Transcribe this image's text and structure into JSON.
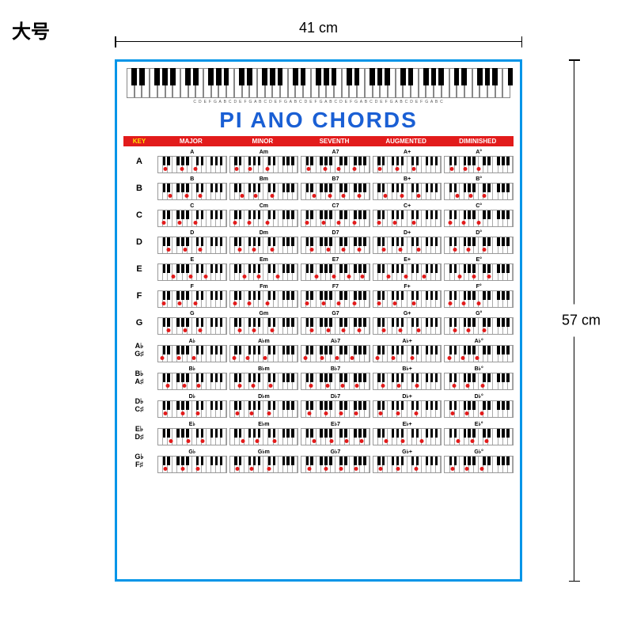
{
  "size_label": "大号",
  "dimensions": {
    "width": "41 cm",
    "height": "57 cm"
  },
  "title": "PI ANO CHORDS",
  "border_color": "#0095e8",
  "title_color": "#1a5fd4",
  "header_bg": "#e21b1b",
  "dot_color": "#e21b1b",
  "note_letters": "C D E F G A B C D E F G A B C D E F G A B C D E F G A B C D E F G A B C D E F G A B C D E F G A B C",
  "top_keyboard": {
    "white_keys": 50,
    "pattern": [
      1,
      1,
      0,
      1,
      1,
      1,
      0
    ]
  },
  "column_headers": [
    "KEY",
    "MAJOR",
    "MINOR",
    "SEVENTH",
    "AUGMENTED",
    "DIMINISHED"
  ],
  "rows": [
    {
      "label": "A",
      "dual": false,
      "chords": [
        {
          "name": "A",
          "dots": [
            10,
            35,
            55
          ]
        },
        {
          "name": "Am",
          "dots": [
            10,
            30,
            55
          ]
        },
        {
          "name": "A7",
          "dots": [
            10,
            35,
            55,
            78
          ]
        },
        {
          "name": "A+",
          "dots": [
            10,
            35,
            60
          ]
        },
        {
          "name": "A°",
          "dots": [
            10,
            30,
            50
          ]
        }
      ]
    },
    {
      "label": "B",
      "dual": false,
      "chords": [
        {
          "name": "B",
          "dots": [
            18,
            42,
            62
          ]
        },
        {
          "name": "Bm",
          "dots": [
            18,
            38,
            62
          ]
        },
        {
          "name": "B7",
          "dots": [
            18,
            42,
            62,
            85
          ]
        },
        {
          "name": "B+",
          "dots": [
            18,
            42,
            67
          ]
        },
        {
          "name": "B°",
          "dots": [
            18,
            38,
            58
          ]
        }
      ]
    },
    {
      "label": "C",
      "dual": false,
      "chords": [
        {
          "name": "C",
          "dots": [
            8,
            32,
            55
          ]
        },
        {
          "name": "Cm",
          "dots": [
            8,
            28,
            55
          ]
        },
        {
          "name": "C7",
          "dots": [
            8,
            32,
            55,
            78
          ]
        },
        {
          "name": "C+",
          "dots": [
            8,
            32,
            60
          ]
        },
        {
          "name": "C°",
          "dots": [
            8,
            28,
            50
          ]
        }
      ]
    },
    {
      "label": "D",
      "dual": false,
      "chords": [
        {
          "name": "D",
          "dots": [
            15,
            40,
            62
          ]
        },
        {
          "name": "Dm",
          "dots": [
            15,
            35,
            62
          ]
        },
        {
          "name": "D7",
          "dots": [
            15,
            40,
            62,
            85
          ]
        },
        {
          "name": "D+",
          "dots": [
            15,
            40,
            67
          ]
        },
        {
          "name": "D°",
          "dots": [
            15,
            35,
            58
          ]
        }
      ]
    },
    {
      "label": "E",
      "dual": false,
      "chords": [
        {
          "name": "E",
          "dots": [
            22,
            48,
            70
          ]
        },
        {
          "name": "Em",
          "dots": [
            22,
            43,
            70
          ]
        },
        {
          "name": "E7",
          "dots": [
            22,
            48,
            70,
            90
          ]
        },
        {
          "name": "E+",
          "dots": [
            22,
            48,
            75
          ]
        },
        {
          "name": "E°",
          "dots": [
            22,
            43,
            65
          ]
        }
      ]
    },
    {
      "label": "F",
      "dual": false,
      "chords": [
        {
          "name": "F",
          "dots": [
            8,
            32,
            55
          ]
        },
        {
          "name": "Fm",
          "dots": [
            8,
            28,
            55
          ]
        },
        {
          "name": "F7",
          "dots": [
            8,
            32,
            55,
            78
          ]
        },
        {
          "name": "F+",
          "dots": [
            8,
            32,
            60
          ]
        },
        {
          "name": "F°",
          "dots": [
            8,
            28,
            50
          ]
        }
      ]
    },
    {
      "label": "G",
      "dual": false,
      "chords": [
        {
          "name": "G",
          "dots": [
            15,
            40,
            62
          ]
        },
        {
          "name": "Gm",
          "dots": [
            15,
            35,
            62
          ]
        },
        {
          "name": "G7",
          "dots": [
            15,
            40,
            62,
            85
          ]
        },
        {
          "name": "G+",
          "dots": [
            15,
            40,
            67
          ]
        },
        {
          "name": "G°",
          "dots": [
            15,
            35,
            58
          ]
        }
      ]
    },
    {
      "label": "A♭\nG♯",
      "dual": true,
      "chords": [
        {
          "name": "A♭",
          "dots": [
            6,
            30,
            52
          ]
        },
        {
          "name": "A♭m",
          "dots": [
            6,
            26,
            52
          ]
        },
        {
          "name": "A♭7",
          "dots": [
            6,
            30,
            52,
            75
          ]
        },
        {
          "name": "A♭+",
          "dots": [
            6,
            30,
            57
          ]
        },
        {
          "name": "A♭°",
          "dots": [
            6,
            26,
            48
          ]
        }
      ]
    },
    {
      "label": "B♭\nA♯",
      "dual": true,
      "chords": [
        {
          "name": "B♭",
          "dots": [
            14,
            38,
            60
          ]
        },
        {
          "name": "B♭m",
          "dots": [
            14,
            34,
            60
          ]
        },
        {
          "name": "B♭7",
          "dots": [
            14,
            38,
            60,
            82
          ]
        },
        {
          "name": "B♭+",
          "dots": [
            14,
            38,
            65
          ]
        },
        {
          "name": "B♭°",
          "dots": [
            14,
            34,
            56
          ]
        }
      ]
    },
    {
      "label": "D♭\nC♯",
      "dual": true,
      "chords": [
        {
          "name": "D♭",
          "dots": [
            11,
            36,
            58
          ]
        },
        {
          "name": "D♭m",
          "dots": [
            11,
            32,
            58
          ]
        },
        {
          "name": "D♭7",
          "dots": [
            11,
            36,
            58,
            80
          ]
        },
        {
          "name": "D♭+",
          "dots": [
            11,
            36,
            63
          ]
        },
        {
          "name": "D♭°",
          "dots": [
            11,
            32,
            54
          ]
        }
      ]
    },
    {
      "label": "E♭\nD♯",
      "dual": true,
      "chords": [
        {
          "name": "E♭",
          "dots": [
            19,
            44,
            66
          ]
        },
        {
          "name": "E♭m",
          "dots": [
            19,
            40,
            66
          ]
        },
        {
          "name": "E♭7",
          "dots": [
            19,
            44,
            66,
            88
          ]
        },
        {
          "name": "E♭+",
          "dots": [
            19,
            44,
            71
          ]
        },
        {
          "name": "E♭°",
          "dots": [
            19,
            40,
            62
          ]
        }
      ]
    },
    {
      "label": "G♭\nF♯",
      "dual": true,
      "chords": [
        {
          "name": "G♭",
          "dots": [
            11,
            36,
            58
          ]
        },
        {
          "name": "G♭m",
          "dots": [
            11,
            32,
            58
          ]
        },
        {
          "name": "G♭7",
          "dots": [
            11,
            36,
            58,
            80
          ]
        },
        {
          "name": "G♭+",
          "dots": [
            11,
            36,
            63
          ]
        },
        {
          "name": "G♭°",
          "dots": [
            11,
            32,
            54
          ]
        }
      ]
    }
  ],
  "mini_white_keys": 14,
  "mini_black_positions": [
    6.5,
    13,
    27,
    34,
    41,
    56,
    63,
    77,
    84,
    91
  ]
}
